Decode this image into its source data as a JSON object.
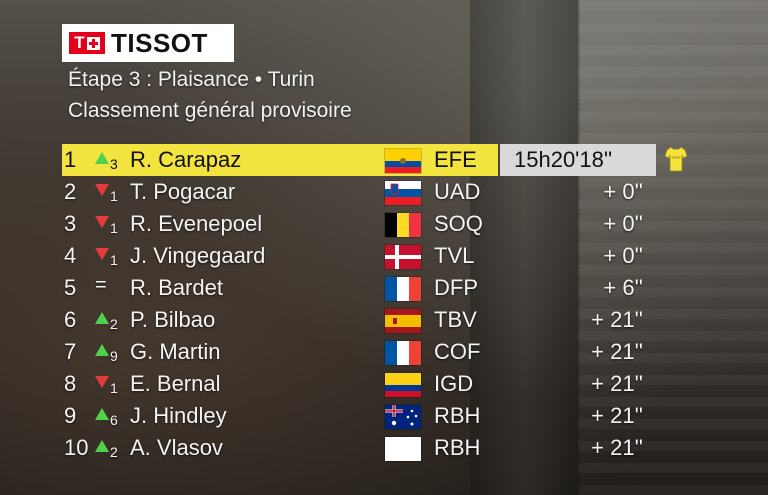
{
  "brand": {
    "logo_text": "TISSOT",
    "logo_mark": "T"
  },
  "header": {
    "stage_line": "Étape 3 : Plaisance •  Turin",
    "subtitle": "Classement général provisoire"
  },
  "colors": {
    "leader_bar": "#f3e33f",
    "time_box": "#d9d9d9",
    "up": "#4ed24e",
    "down": "#e23b3b"
  },
  "leader_icon": "yellow-jersey-icon",
  "standings": [
    {
      "rank": "1",
      "move": "up",
      "move_n": "3",
      "rider": "R. Carapaz",
      "flag": "ecuador",
      "team": "EFE",
      "time": "15h20'18''"
    },
    {
      "rank": "2",
      "move": "down",
      "move_n": "1",
      "rider": "T. Pogacar",
      "flag": "slovenia",
      "team": "UAD",
      "time": "+ 0''"
    },
    {
      "rank": "3",
      "move": "down",
      "move_n": "1",
      "rider": "R. Evenepoel",
      "flag": "belgium",
      "team": "SOQ",
      "time": "+ 0''"
    },
    {
      "rank": "4",
      "move": "down",
      "move_n": "1",
      "rider": "J. Vingegaard",
      "flag": "denmark",
      "team": "TVL",
      "time": "+ 0''"
    },
    {
      "rank": "5",
      "move": "eq",
      "move_n": "",
      "rider": "R. Bardet",
      "flag": "france",
      "team": "DFP",
      "time": "+ 6''"
    },
    {
      "rank": "6",
      "move": "up",
      "move_n": "2",
      "rider": "P. Bilbao",
      "flag": "spain",
      "team": "TBV",
      "time": "+ 21''"
    },
    {
      "rank": "7",
      "move": "up",
      "move_n": "9",
      "rider": "G. Martin",
      "flag": "france",
      "team": "COF",
      "time": "+ 21''"
    },
    {
      "rank": "8",
      "move": "down",
      "move_n": "1",
      "rider": "E. Bernal",
      "flag": "colombia",
      "team": "IGD",
      "time": "+ 21''"
    },
    {
      "rank": "9",
      "move": "up",
      "move_n": "6",
      "rider": "J. Hindley",
      "flag": "australia",
      "team": "RBH",
      "time": "+ 21''"
    },
    {
      "rank": "10",
      "move": "up",
      "move_n": "2",
      "rider": "A. Vlasov",
      "flag": "blank",
      "team": "RBH",
      "time": "+ 21''"
    }
  ]
}
